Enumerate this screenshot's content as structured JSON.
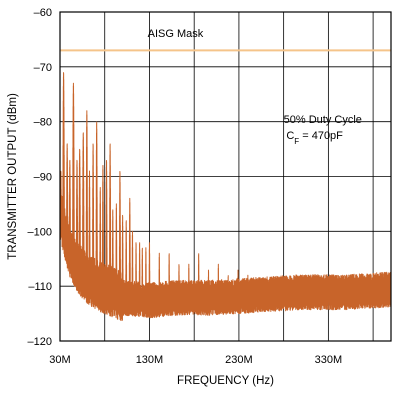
{
  "chart_data": {
    "type": "line",
    "title": "",
    "xlabel": "FREQUENCY (Hz)",
    "ylabel": "TRANSMITTER OUTPUT (dBm)",
    "xlim": [
      30,
      400
    ],
    "ylim": [
      -120,
      -60
    ],
    "grid": true,
    "x_unit": "MHz",
    "x_ticks": [
      {
        "value": 30,
        "label": "30M"
      },
      {
        "value": 130,
        "label": "130M"
      },
      {
        "value": 230,
        "label": "230M"
      },
      {
        "value": 330,
        "label": "330M"
      }
    ],
    "x_gridlines": [
      30,
      80,
      130,
      180,
      230,
      280,
      330,
      380
    ],
    "y_ticks": [
      -60,
      -70,
      -80,
      -90,
      -100,
      -110,
      -120
    ],
    "y_tick_labels": [
      "–60",
      "–70",
      "–80",
      "–90",
      "–100",
      "–110",
      "–120"
    ],
    "mask": {
      "label": "AISG Mask",
      "value": -67,
      "color": "#f5c48a"
    },
    "annotation": {
      "line1": "50% Duty Cycle",
      "line2_main": "C",
      "line2_sub": "F",
      "line2_rest": " = 470pF"
    },
    "series": [
      {
        "color": "#c8642a",
        "noise_floor": [
          [
            30,
            -96
          ],
          [
            40,
            -103
          ],
          [
            50,
            -106
          ],
          [
            60,
            -108
          ],
          [
            75,
            -109.5
          ],
          [
            90,
            -110.5
          ],
          [
            100,
            -111.5
          ],
          [
            130,
            -112
          ],
          [
            160,
            -111.5
          ],
          [
            200,
            -111.5
          ],
          [
            250,
            -111
          ],
          [
            300,
            -110.5
          ],
          [
            350,
            -110.5
          ],
          [
            400,
            -110
          ]
        ],
        "peaks": [
          {
            "x": 31,
            "y": -89
          },
          {
            "x": 34,
            "y": -71
          },
          {
            "x": 38,
            "y": -84
          },
          {
            "x": 41,
            "y": -87
          },
          {
            "x": 45,
            "y": -73
          },
          {
            "x": 49,
            "y": -87
          },
          {
            "x": 52,
            "y": -85
          },
          {
            "x": 56,
            "y": -82
          },
          {
            "x": 60,
            "y": -78
          },
          {
            "x": 63,
            "y": -89
          },
          {
            "x": 67,
            "y": -84
          },
          {
            "x": 71,
            "y": -80
          },
          {
            "x": 75,
            "y": -92
          },
          {
            "x": 78,
            "y": -88
          },
          {
            "x": 82,
            "y": -87
          },
          {
            "x": 86,
            "y": -84
          },
          {
            "x": 89,
            "y": -96
          },
          {
            "x": 93,
            "y": -95
          },
          {
            "x": 97,
            "y": -89
          },
          {
            "x": 100,
            "y": -97
          },
          {
            "x": 104,
            "y": -98
          },
          {
            "x": 108,
            "y": -94
          },
          {
            "x": 111,
            "y": -100
          },
          {
            "x": 115,
            "y": -102
          },
          {
            "x": 119,
            "y": -102
          },
          {
            "x": 122,
            "y": -103
          },
          {
            "x": 126,
            "y": -103
          },
          {
            "x": 130,
            "y": -102
          },
          {
            "x": 141,
            "y": -104
          },
          {
            "x": 152,
            "y": -104
          },
          {
            "x": 163,
            "y": -106
          },
          {
            "x": 174,
            "y": -106
          },
          {
            "x": 185,
            "y": -104
          },
          {
            "x": 196,
            "y": -107
          },
          {
            "x": 207,
            "y": -106
          },
          {
            "x": 218,
            "y": -108
          },
          {
            "x": 229,
            "y": -107
          },
          {
            "x": 240,
            "y": -108
          }
        ]
      }
    ]
  }
}
